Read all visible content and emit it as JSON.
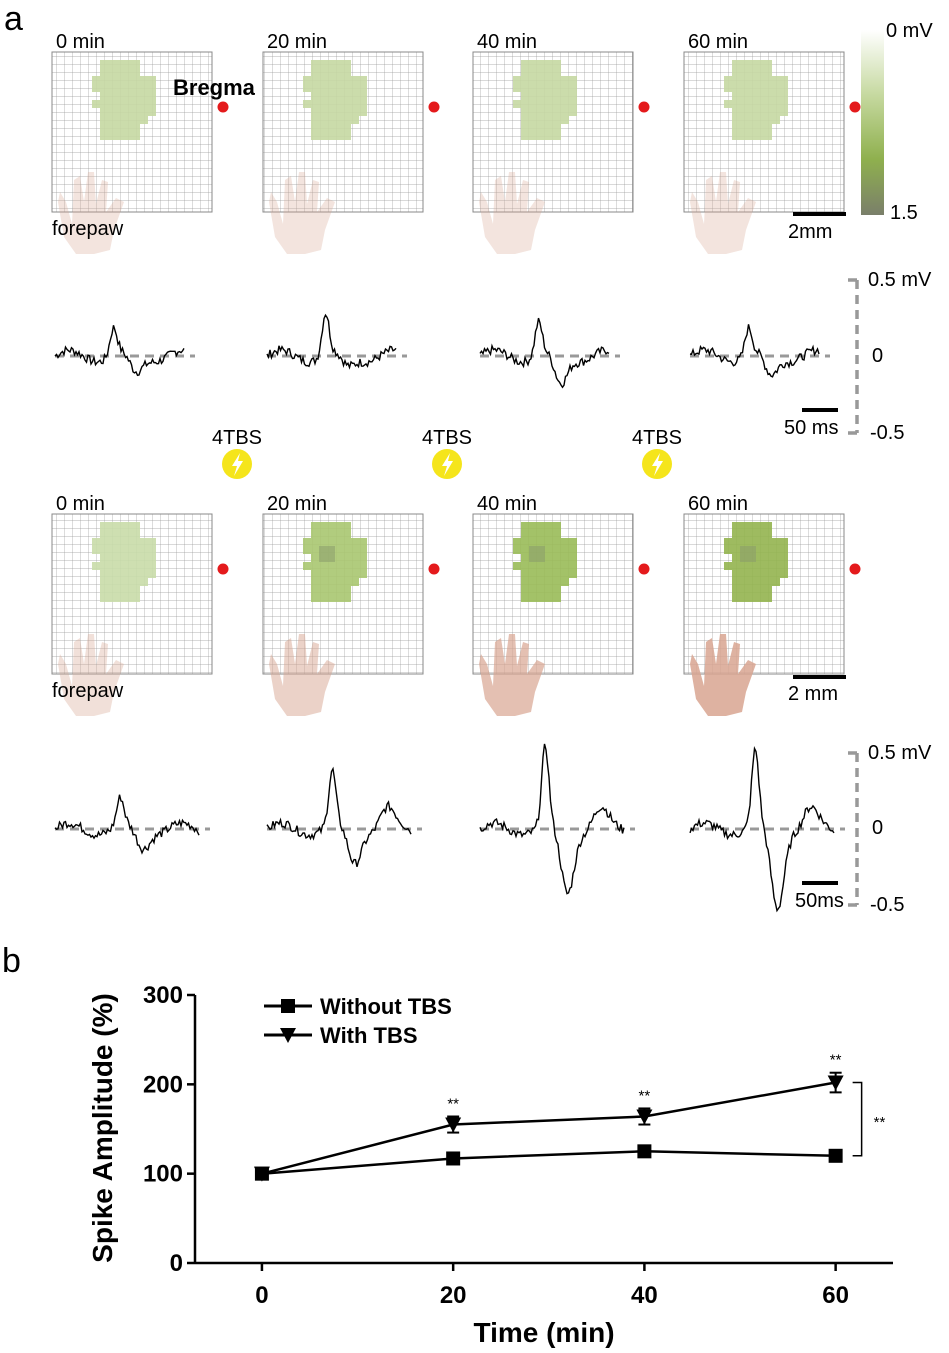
{
  "panel_a": {
    "label": "a",
    "time_labels": [
      "0 min",
      "20 min",
      "40 min",
      "60 min"
    ],
    "bregma_label": "Bregma",
    "forepaw_label": "forepaw",
    "scalebar_top": "2mm",
    "scalebar_bottom": "2 mm",
    "colorbar": {
      "max_label": "0 mV",
      "min_label": "1.5",
      "colors": [
        "#ffffff",
        "#c6d9a0",
        "#8fb04e",
        "#7a7f6a"
      ]
    },
    "trace_scale": {
      "top": "0.5 mV",
      "zero": "0",
      "bottom": "-0.5"
    },
    "time_scale_top": "50 ms",
    "time_scale_bottom": "50ms",
    "stim_label": "4TBS",
    "stim_icon": "lightning-bolt-icon",
    "map_fill_top": [
      "#c5d8a2",
      "#c5d8a2",
      "#c5d8a2",
      "#c5d8a2"
    ],
    "map_fill_bottom": [
      "#c9dca8",
      "#a8c670",
      "#99bb58",
      "#93b44f"
    ],
    "hand_opacity_top": [
      0.3,
      0.3,
      0.3,
      0.3
    ],
    "hand_opacity_bottom": [
      0.35,
      0.5,
      0.7,
      0.85
    ],
    "spike_top_mv": [
      0.18,
      0.28,
      0.22,
      0.18
    ],
    "spike_bottom_mv": [
      0.18,
      0.36,
      0.52,
      0.5
    ],
    "trough_bottom_mv": [
      -0.12,
      -0.22,
      -0.42,
      -0.52
    ]
  },
  "panel_b": {
    "label": "b",
    "significance_marks": [
      "**",
      "**",
      "**"
    ],
    "bracket_mark": "**"
  },
  "chart_data": {
    "type": "line",
    "title": "",
    "xlabel": "Time (min)",
    "ylabel": "Spike Amplitude (%)",
    "x": [
      0,
      20,
      40,
      60
    ],
    "xlim": [
      -7,
      66
    ],
    "ylim": [
      0,
      300
    ],
    "xticks": [
      "0",
      "20",
      "40",
      "60"
    ],
    "yticks": [
      "0",
      "100",
      "200",
      "300"
    ],
    "legend_position": "top-left",
    "grid": false,
    "series": [
      {
        "name": "Without TBS",
        "marker": "square",
        "values": [
          100,
          117,
          125,
          120
        ],
        "errors": [
          0,
          5,
          5,
          5
        ]
      },
      {
        "name": "With TBS",
        "marker": "triangle-down",
        "values": [
          100,
          155,
          164,
          202
        ],
        "errors": [
          0,
          9,
          9,
          11
        ]
      }
    ]
  }
}
